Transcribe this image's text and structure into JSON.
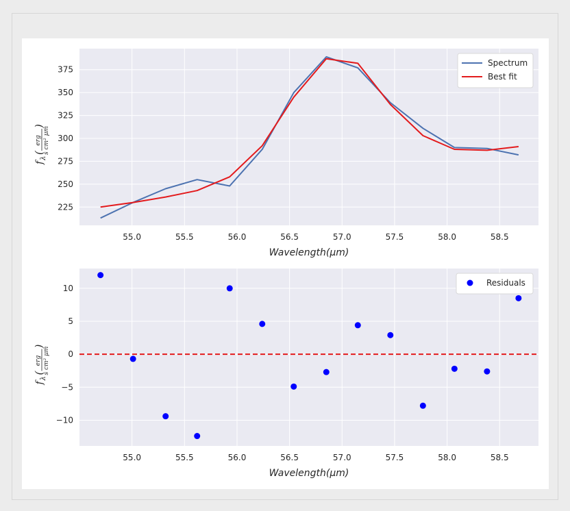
{
  "chart_data": [
    {
      "type": "line",
      "x": [
        54.7,
        55.01,
        55.32,
        55.62,
        55.93,
        56.24,
        56.54,
        56.85,
        57.15,
        57.46,
        57.77,
        58.07,
        58.38,
        58.68
      ],
      "series": [
        {
          "name": "Spectrum",
          "color": "#4c72b0",
          "values": [
            213,
            230,
            245,
            255,
            248,
            288,
            350,
            389,
            377,
            339,
            311,
            290,
            289,
            282
          ]
        },
        {
          "name": "Best fit",
          "color": "#e31a1c",
          "values": [
            225,
            230,
            236,
            243,
            258,
            292,
            345,
            387,
            382,
            337,
            303,
            288,
            287,
            291
          ]
        }
      ],
      "xlabel": "Wavelength(μm)",
      "ylabel": "f_λ (erg / s cm² μm)",
      "xlim": [
        54.5,
        58.87
      ],
      "ylim": [
        205,
        398
      ],
      "xticks": [
        55.0,
        55.5,
        56.0,
        56.5,
        57.0,
        57.5,
        58.0,
        58.5
      ],
      "yticks": [
        225,
        250,
        275,
        300,
        325,
        350,
        375
      ],
      "grid": true,
      "legend": "top-right"
    },
    {
      "type": "scatter",
      "x": [
        54.7,
        55.01,
        55.32,
        55.62,
        55.93,
        56.24,
        56.54,
        56.85,
        57.15,
        57.46,
        57.77,
        58.07,
        58.38,
        58.68
      ],
      "series": [
        {
          "name": "Residuals",
          "color": "#0000ff",
          "values": [
            12.0,
            -0.7,
            -9.4,
            -12.4,
            10.0,
            4.6,
            -4.9,
            -2.7,
            4.4,
            2.9,
            -7.8,
            -2.2,
            -2.6,
            8.5
          ]
        }
      ],
      "reference_line": {
        "y": 0,
        "color": "#e31a1c",
        "style": "dashed"
      },
      "xlabel": "Wavelength(μm)",
      "ylabel": "f_λ (erg / s cm² μm)",
      "xlim": [
        54.5,
        58.87
      ],
      "ylim": [
        -13.9,
        13.0
      ],
      "xticks": [
        55.0,
        55.5,
        56.0,
        56.5,
        57.0,
        57.5,
        58.0,
        58.5
      ],
      "yticks": [
        -10,
        -5,
        0,
        5,
        10
      ],
      "grid": true,
      "legend": "top-right"
    }
  ],
  "ylabel_parts": {
    "f": "f",
    "sub": "λ",
    "num": "erg",
    "den": "s cm² μm"
  },
  "style": {
    "plot_bg": "#eaeaf2",
    "grid_color": "#ffffff"
  }
}
